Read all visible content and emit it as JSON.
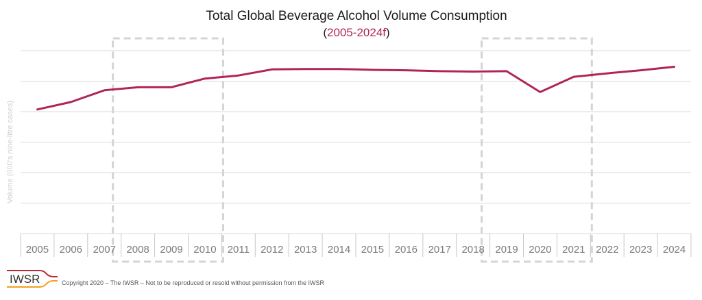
{
  "chart_data": {
    "type": "line",
    "title": "Total Global Beverage Alcohol Volume Consumption",
    "subtitle_open": "(",
    "subtitle_accent": "2005-2024f",
    "subtitle_close": ")",
    "xlabel": "",
    "ylabel": "Volume (000's nine-litre cases)",
    "categories": [
      "2005",
      "2006",
      "2007",
      "2008",
      "2009",
      "2010",
      "2011",
      "2012",
      "2013",
      "2014",
      "2015",
      "2016",
      "2017",
      "2018",
      "2019",
      "2020",
      "2021",
      "2022",
      "2023",
      "2024"
    ],
    "series": [
      {
        "values": [
          88.5,
          90.2,
          92.9,
          93.6,
          93.6,
          95.6,
          96.3,
          97.7,
          97.8,
          97.8,
          97.6,
          97.5,
          97.3,
          97.2,
          97.3,
          92.5,
          96.0,
          96.8,
          97.5,
          98.3
        ]
      }
    ],
    "ylim": [
      60,
      102
    ],
    "y_gridlines": 6,
    "y_tick_labels_shown": false,
    "grid": true,
    "highlight_periods": [
      {
        "from": "2008",
        "to": "2010"
      },
      {
        "from": "2019",
        "to": "2021"
      }
    ],
    "line_color": "#b0245a"
  },
  "footer": {
    "logo_text": "IWSR",
    "copyright": "Copyright 2020 – The IWSR – Not to be reproduced or resold without permission from the IWSR"
  },
  "colors": {
    "accent": "#b0245a",
    "logo_orange": "#f0a020",
    "logo_red": "#c0263a"
  }
}
